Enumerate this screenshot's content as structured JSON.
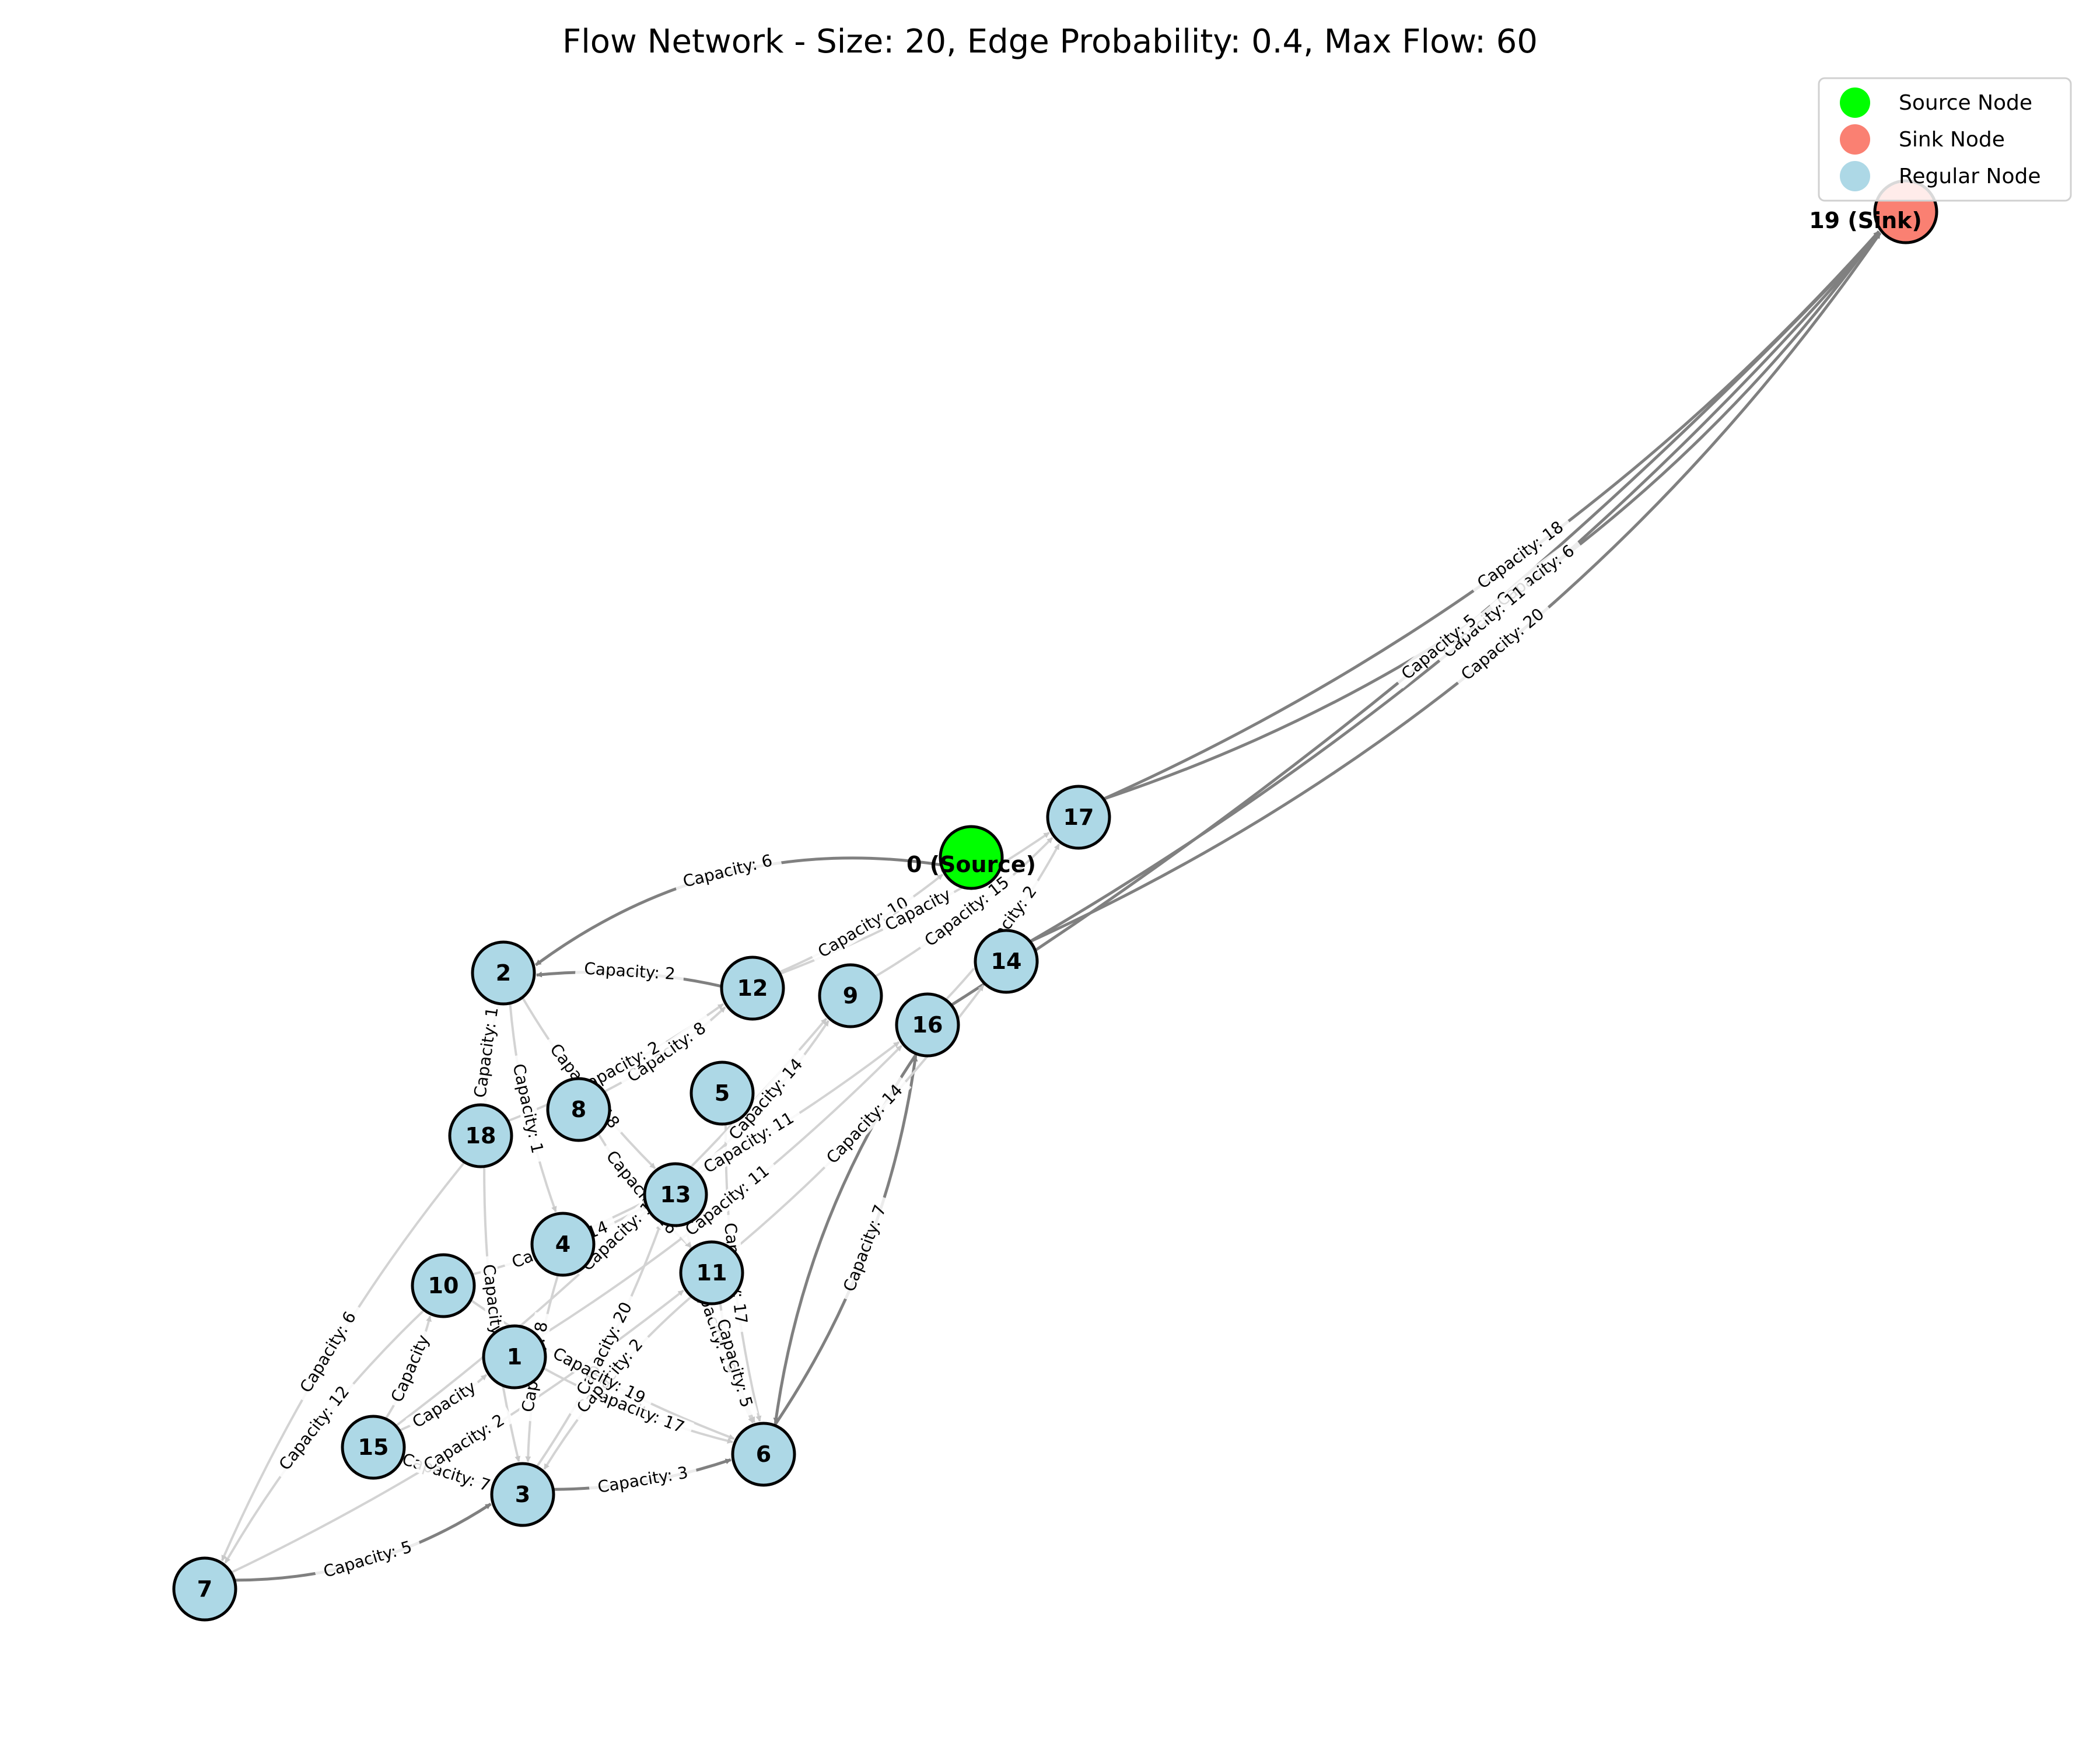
{
  "title": "Flow Network - Size: 20, Edge Probability: 0.4, Max Flow: 60",
  "colors": {
    "source": "#00ff00",
    "sink": "#fa8072",
    "regular": "#add8e6",
    "edge": "#808080",
    "edge_light": "#d3d3d3"
  },
  "legend": [
    {
      "label": "Source Node",
      "color": "#00ff00"
    },
    {
      "label": "Sink Node",
      "color": "#fa8072"
    },
    {
      "label": "Regular Node",
      "color": "#add8e6"
    }
  ],
  "nodes": [
    {
      "id": 0,
      "label": "0 (Source)",
      "kind": "source"
    },
    {
      "id": 1,
      "label": "1",
      "kind": "regular"
    },
    {
      "id": 2,
      "label": "2",
      "kind": "regular"
    },
    {
      "id": 3,
      "label": "3",
      "kind": "regular"
    },
    {
      "id": 4,
      "label": "4",
      "kind": "regular"
    },
    {
      "id": 5,
      "label": "5",
      "kind": "regular"
    },
    {
      "id": 6,
      "label": "6",
      "kind": "regular"
    },
    {
      "id": 7,
      "label": "7",
      "kind": "regular"
    },
    {
      "id": 8,
      "label": "8",
      "kind": "regular"
    },
    {
      "id": 9,
      "label": "9",
      "kind": "regular"
    },
    {
      "id": 10,
      "label": "10",
      "kind": "regular"
    },
    {
      "id": 11,
      "label": "11",
      "kind": "regular"
    },
    {
      "id": 12,
      "label": "12",
      "kind": "regular"
    },
    {
      "id": 13,
      "label": "13",
      "kind": "regular"
    },
    {
      "id": 14,
      "label": "14",
      "kind": "regular"
    },
    {
      "id": 15,
      "label": "15",
      "kind": "regular"
    },
    {
      "id": 16,
      "label": "16",
      "kind": "regular"
    },
    {
      "id": 17,
      "label": "17",
      "kind": "regular"
    },
    {
      "id": 18,
      "label": "18",
      "kind": "regular"
    },
    {
      "id": 19,
      "label": "19 (Sink)",
      "kind": "sink"
    }
  ],
  "edges": [
    {
      "from": 0,
      "to": 2,
      "capacity": "Capacity: 6"
    },
    {
      "from": 12,
      "to": 2,
      "capacity": "Capacity: 2"
    },
    {
      "from": 17,
      "to": 19,
      "capacity": "Capacity: 18"
    },
    {
      "from": 17,
      "to": 19,
      "capacity": "Capacity: 6"
    },
    {
      "from": 14,
      "to": 19,
      "capacity": "Capacity: 11"
    },
    {
      "from": 14,
      "to": 19,
      "capacity": "Capacity: 20"
    },
    {
      "from": 16,
      "to": 19,
      "capacity": "Capacity: 5"
    },
    {
      "from": 7,
      "to": 3,
      "capacity": "Capacity: 5"
    },
    {
      "from": 3,
      "to": 6,
      "capacity": "Capacity: 3"
    },
    {
      "from": 6,
      "to": 16,
      "capacity": "Capacity: 7"
    },
    {
      "from": 16,
      "to": 6,
      "capacity": ""
    },
    {
      "from": 10,
      "to": 7,
      "capacity": "Capacity: 12"
    },
    {
      "from": 18,
      "to": 7,
      "capacity": "Capacity: 6"
    },
    {
      "from": 15,
      "to": 3,
      "capacity": "Capacity: 7"
    },
    {
      "from": 15,
      "to": 1,
      "capacity": "Capacity"
    },
    {
      "from": 1,
      "to": 6,
      "capacity": "Capacity: 17"
    },
    {
      "from": 11,
      "to": 3,
      "capacity": "Capacity: 2"
    },
    {
      "from": 13,
      "to": 6,
      "capacity": "Capacity: 19"
    },
    {
      "from": 11,
      "to": 6,
      "capacity": "Capacity: 5"
    },
    {
      "from": 5,
      "to": 6,
      "capacity": "Capacity: 17"
    },
    {
      "from": 4,
      "to": 3,
      "capacity": "Capacity: 8"
    },
    {
      "from": 18,
      "to": 3,
      "capacity": "Capacity: 17"
    },
    {
      "from": 2,
      "to": 18,
      "capacity": "Capacity: 1"
    },
    {
      "from": 2,
      "to": 4,
      "capacity": "Capacity: 1"
    },
    {
      "from": 2,
      "to": 13,
      "capacity": "Capacity: 18"
    },
    {
      "from": 8,
      "to": 12,
      "capacity": "Capacity: 8"
    },
    {
      "from": 18,
      "to": 12,
      "capacity": "Capacity: 2"
    },
    {
      "from": 13,
      "to": 9,
      "capacity": "Capacity: 14"
    },
    {
      "from": 4,
      "to": 16,
      "capacity": "Capacity: 11"
    },
    {
      "from": 1,
      "to": 16,
      "capacity": "Capacity: 11"
    },
    {
      "from": 11,
      "to": 14,
      "capacity": "Capacity: 14"
    },
    {
      "from": 12,
      "to": 0,
      "capacity": "Capacity: 10"
    },
    {
      "from": 9,
      "to": 17,
      "capacity": "Capacity: 15"
    },
    {
      "from": 16,
      "to": 17,
      "capacity": "Capacity: 2"
    },
    {
      "from": 12,
      "to": 17,
      "capacity": "Capacity"
    },
    {
      "from": 3,
      "to": 13,
      "capacity": "Capacity: 20"
    },
    {
      "from": 10,
      "to": 6,
      "capacity": "Capacity: 19"
    },
    {
      "from": 8,
      "to": 11,
      "capacity": "Capacity: 16"
    },
    {
      "from": 15,
      "to": 9,
      "capacity": "Capacity: 10"
    },
    {
      "from": 10,
      "to": 13,
      "capacity": "Capacity: 14"
    },
    {
      "from": 7,
      "to": 11,
      "capacity": "Capacity: 2"
    },
    {
      "from": 15,
      "to": 10,
      "capacity": "Capacity"
    }
  ]
}
